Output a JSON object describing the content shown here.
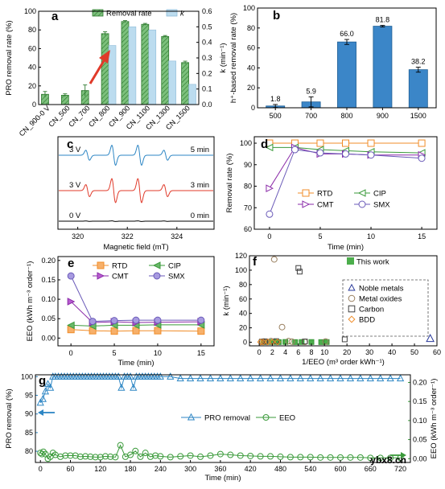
{
  "panels": {
    "a": "a",
    "b": "b",
    "c": "c",
    "d": "d",
    "e": "e",
    "f": "f",
    "g": "g"
  },
  "watermark": "ybx8.cn",
  "colors": {
    "green": "#3a9a3a",
    "greenFill": "#6ab86a",
    "blue": "#2d86c4",
    "lightBlue": "#bcdcef",
    "orange": "#f08c28",
    "purple": "#8a2aa8",
    "lavender": "#6a5ab8",
    "lavFill": "#a79ae0",
    "tan": "#9a8060",
    "gray": "#404040",
    "red": "#e03a2a",
    "navy": "#2a3a9a",
    "b_bar": "#3b86c8"
  },
  "chart_data": [
    {
      "panel": "a",
      "type": "bar",
      "categories": [
        "CN_900-0 V",
        "CN_500",
        "CN_700",
        "CN_800",
        "CN_900",
        "CN_1100",
        "CN_1300",
        "CN_1500"
      ],
      "series": [
        {
          "name": "Removal rate",
          "axis": "left",
          "values": [
            11,
            10,
            15,
            76,
            89,
            86,
            73,
            45
          ],
          "errors": [
            3,
            1.5,
            6,
            2,
            1,
            1,
            1,
            1.5
          ]
        },
        {
          "name": "k",
          "axis": "right",
          "values": [
            0.0,
            0.0,
            0.0,
            0.38,
            0.5,
            0.48,
            0.28,
            0.13
          ]
        }
      ],
      "ylabel": "PRO removal rate (%)",
      "y2label": "k (min⁻¹)",
      "ylim": [
        0,
        100
      ],
      "y2lim": [
        0,
        0.6
      ],
      "yticks": [
        0,
        20,
        40,
        60,
        80,
        100
      ],
      "y2ticks": [
        0.0,
        0.1,
        0.2,
        0.3,
        0.4,
        0.5,
        0.6
      ],
      "legend": "top-right"
    },
    {
      "panel": "b",
      "type": "bar",
      "categories": [
        "500",
        "700",
        "800",
        "900",
        "1500"
      ],
      "values": [
        1.8,
        5.9,
        66.0,
        81.8,
        38.2
      ],
      "labels": [
        "1.8",
        "5.9",
        "66.0",
        "81.8",
        "38.2"
      ],
      "errors": [
        1.5,
        5,
        2.5,
        0.8,
        2.5
      ],
      "ylabel": "h⁺-based removal rate (%)",
      "ylim": [
        0,
        100
      ],
      "yticks": [
        0,
        20,
        40,
        60,
        80,
        100
      ]
    },
    {
      "panel": "c",
      "type": "line",
      "xlabel": "Magnetic field (mT)",
      "xlim": [
        319.2,
        325.5
      ],
      "xticks": [
        320,
        322,
        324
      ],
      "peaks": [
        320.4,
        321.45,
        322.5,
        323.55
      ],
      "amps": [
        1,
        2,
        2,
        1
      ],
      "series": [
        {
          "name": "3 V, 5 min",
          "left_label": "3 V",
          "right_label": "5 min",
          "amplitude": 1.0
        },
        {
          "name": "3 V, 3 min",
          "left_label": "3 V",
          "right_label": "3 min",
          "amplitude": 1.2
        },
        {
          "name": "0 V, 0 min",
          "left_label": "0 V",
          "right_label": "0 min",
          "amplitude": 0.03
        }
      ]
    },
    {
      "panel": "d",
      "type": "line",
      "x": [
        0,
        2.5,
        5,
        7.5,
        10,
        15
      ],
      "series": [
        {
          "name": "RTD",
          "values": [
            100,
            100,
            100,
            100,
            100,
            100
          ]
        },
        {
          "name": "CIP",
          "values": [
            98,
            98,
            97,
            96.5,
            96,
            95.5
          ]
        },
        {
          "name": "CMT",
          "values": [
            79,
            98,
            95,
            95,
            94.5,
            94.5
          ]
        },
        {
          "name": "SMX",
          "values": [
            67,
            97,
            95.5,
            95,
            94.5,
            93
          ]
        }
      ],
      "xlabel": "Time (min)",
      "ylabel": "Removal rate (%)",
      "xlim": [
        -1.5,
        16.5
      ],
      "ylim": [
        60,
        103
      ],
      "xticks": [
        0,
        5,
        10,
        15
      ],
      "yticks": [
        60,
        70,
        80,
        90,
        100
      ]
    },
    {
      "panel": "e",
      "type": "line",
      "x": [
        0,
        2.5,
        5,
        7.5,
        10,
        15
      ],
      "series": [
        {
          "name": "RTD",
          "values": [
            0.022,
            0.019,
            0.018,
            0.019,
            0.019,
            0.018
          ]
        },
        {
          "name": "CIP",
          "values": [
            0.033,
            0.031,
            0.033,
            0.033,
            0.034,
            0.034
          ]
        },
        {
          "name": "CMT",
          "values": [
            0.094,
            0.04,
            0.042,
            0.04,
            0.041,
            0.042
          ]
        },
        {
          "name": "SMX",
          "values": [
            0.16,
            0.043,
            0.045,
            0.046,
            0.046,
            0.046
          ]
        }
      ],
      "xlabel": "Time (min)",
      "ylabel": "EEO (kWh m⁻³ order⁻¹)",
      "xlim": [
        -1.5,
        16.5
      ],
      "ylim": [
        -0.02,
        0.21
      ],
      "xticks": [
        0,
        5,
        10,
        15
      ],
      "yticks": [
        0.0,
        0.05,
        0.1,
        0.15,
        0.2
      ],
      "yticklabels": [
        "0.00",
        "0.05",
        "0.10",
        "0.15",
        "0.20"
      ]
    },
    {
      "panel": "f",
      "type": "scatter",
      "xlabel": "1/EEO (m³ order kWh⁻¹)",
      "ylabel": "k (min⁻¹)",
      "xlim": [
        -1.5,
        60
      ],
      "ylim": [
        -5,
        120
      ],
      "xticks": [
        0,
        2,
        4,
        6,
        8,
        10,
        20,
        30,
        40,
        50,
        60
      ],
      "yticks": [
        0,
        20,
        40,
        60,
        80,
        100,
        120
      ],
      "series": [
        {
          "name": "This work",
          "points": [
            [
              0.6,
              0.2
            ],
            [
              1.0,
              0.3
            ],
            [
              1.5,
              0.3
            ],
            [
              2.2,
              0.4
            ],
            [
              3.0,
              0.2
            ],
            [
              4.0,
              0.4
            ],
            [
              5.5,
              0.2
            ],
            [
              6.5,
              0.3
            ],
            [
              8.0,
              0.3
            ],
            [
              9.5,
              0.2
            ],
            [
              11,
              0.3
            ]
          ]
        },
        {
          "name": "Noble metals",
          "points": [
            [
              57,
              5
            ]
          ]
        },
        {
          "name": "Metal oxides",
          "points": [
            [
              0.3,
              0.5
            ],
            [
              0.7,
              1
            ],
            [
              1.2,
              0.5
            ],
            [
              1.8,
              1.5
            ],
            [
              2.3,
              115
            ],
            [
              3.5,
              21
            ],
            [
              4.5,
              1.5
            ],
            [
              5,
              0.8
            ],
            [
              7,
              0.5
            ],
            [
              10.5,
              1
            ]
          ]
        },
        {
          "name": "Carbon",
          "points": [
            [
              0.4,
              0.8
            ],
            [
              0.9,
              1.2
            ],
            [
              2.6,
              1.5
            ],
            [
              6,
              103
            ],
            [
              6.2,
              98
            ],
            [
              7,
              1
            ],
            [
              19,
              4
            ]
          ]
        },
        {
          "name": "BDD",
          "points": [
            [
              0.2,
              0.3
            ],
            [
              0.6,
              0.2
            ],
            [
              1.3,
              0.5
            ],
            [
              2,
              0.2
            ],
            [
              2.8,
              0.4
            ]
          ]
        }
      ]
    },
    {
      "panel": "g",
      "type": "line",
      "xlabel": "Time (min)",
      "ylabel": "PRO removal (%)",
      "y2label": "EEO (kWh m⁻³ order⁻¹)",
      "xlim": [
        -10,
        740
      ],
      "ylim": [
        77,
        100.5
      ],
      "y2lim": [
        -0.01,
        0.22
      ],
      "xticks": [
        0,
        60,
        120,
        180,
        240,
        300,
        360,
        420,
        480,
        540,
        600,
        660,
        720
      ],
      "yticks": [
        80,
        85,
        90,
        95,
        100
      ],
      "y2ticks": [
        0.0,
        0.05,
        0.1,
        0.15,
        0.2
      ],
      "y2ticklabels": [
        "0.00",
        "0.05",
        "0.10",
        "0.15",
        "0.20"
      ],
      "series": [
        {
          "name": "PRO removal",
          "axis": "left",
          "x": [
            0,
            5,
            10,
            15,
            20,
            25,
            30,
            36,
            42,
            48,
            54,
            60,
            66,
            72,
            78,
            84,
            90,
            96,
            102,
            108,
            114,
            120,
            126,
            132,
            138,
            144,
            150,
            156,
            162,
            168,
            174,
            180,
            186,
            192,
            198,
            204,
            210,
            216,
            222,
            228,
            234,
            240,
            260,
            280,
            300,
            320,
            340,
            360,
            380,
            400,
            420,
            440,
            460,
            480,
            500,
            520,
            540,
            560,
            580,
            600,
            620,
            640,
            660,
            680,
            700,
            720
          ],
          "values": [
            93,
            94,
            96,
            98,
            97,
            100,
            100,
            100,
            100,
            100,
            100,
            100,
            100,
            100,
            100,
            100,
            100,
            100,
            100,
            100,
            100,
            100,
            100,
            100,
            100,
            100,
            100,
            100,
            97,
            100,
            100,
            100,
            97,
            100,
            100,
            100,
            100,
            100,
            100,
            100,
            100,
            100,
            100,
            99.5,
            99.5,
            99.5,
            99.5,
            99.5,
            99.5,
            99.5,
            99.5,
            99.5,
            99.5,
            99.5,
            99.5,
            99.5,
            99.5,
            99.5,
            99.5,
            99.5,
            99.5,
            99.5,
            99.5,
            99.5,
            99.5,
            99.5
          ]
        },
        {
          "name": "EEO",
          "axis": "right",
          "x": [
            0,
            3,
            6,
            10,
            15,
            20,
            25,
            30,
            40,
            50,
            60,
            70,
            80,
            90,
            100,
            110,
            120,
            130,
            140,
            150,
            160,
            170,
            180,
            190,
            200,
            210,
            220,
            230,
            240,
            260,
            280,
            300,
            320,
            340,
            360,
            380,
            400,
            420,
            440,
            460,
            480,
            500,
            520,
            540,
            560,
            580,
            600,
            620,
            640,
            660,
            680,
            700,
            720
          ],
          "values": [
            0.015,
            0.012,
            0.018,
            0.012,
            0.0,
            0.005,
            0.015,
            0.01,
            0.005,
            0.008,
            0.008,
            0.008,
            0.005,
            0.006,
            0.005,
            0.004,
            0.004,
            0.006,
            0.005,
            0.004,
            0.035,
            0.005,
            0.01,
            0.02,
            0.005,
            0.015,
            0.005,
            0.008,
            0.006,
            0.004,
            0.006,
            0.008,
            0.005,
            0.008,
            0.012,
            0.01,
            0.008,
            0.007,
            0.006,
            0.006,
            0.005,
            0.004,
            0.004,
            0.004,
            0.003,
            0.003,
            0.003,
            0.003,
            0.003,
            0.002,
            0.002,
            0.002,
            0.002
          ]
        }
      ],
      "legend": "bottom-center"
    }
  ]
}
